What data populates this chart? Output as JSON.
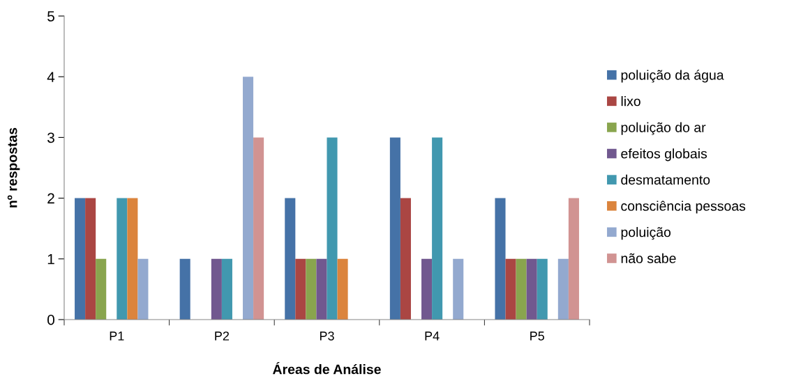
{
  "chart_data": {
    "type": "bar",
    "xlabel": "Áreas de Análise",
    "ylabel": "nº respostas",
    "categories": [
      "P1",
      "P2",
      "P3",
      "P4",
      "P5"
    ],
    "ylim": [
      0,
      5
    ],
    "yticks": [
      0,
      1,
      2,
      3,
      4,
      5
    ],
    "grid": false,
    "legend": "right",
    "series": [
      {
        "name": "poluição da água",
        "color": "#4572a7",
        "values": [
          2,
          1,
          2,
          3,
          2
        ]
      },
      {
        "name": "lixo",
        "color": "#aa4643",
        "values": [
          2,
          0,
          1,
          2,
          1
        ]
      },
      {
        "name": "poluição do ar",
        "color": "#89a54e",
        "values": [
          1,
          0,
          1,
          0,
          1
        ]
      },
      {
        "name": "efeitos globais",
        "color": "#71588f",
        "values": [
          0,
          1,
          1,
          1,
          1
        ]
      },
      {
        "name": "desmatamento",
        "color": "#4198af",
        "values": [
          2,
          1,
          3,
          3,
          1
        ]
      },
      {
        "name": "consciência pessoas",
        "color": "#db843d",
        "values": [
          2,
          0,
          1,
          0,
          0
        ]
      },
      {
        "name": "poluição",
        "color": "#93a9cf",
        "values": [
          1,
          4,
          0,
          1,
          1
        ]
      },
      {
        "name": "não sabe",
        "color": "#d19392",
        "values": [
          0,
          3,
          0,
          0,
          2
        ]
      }
    ]
  }
}
